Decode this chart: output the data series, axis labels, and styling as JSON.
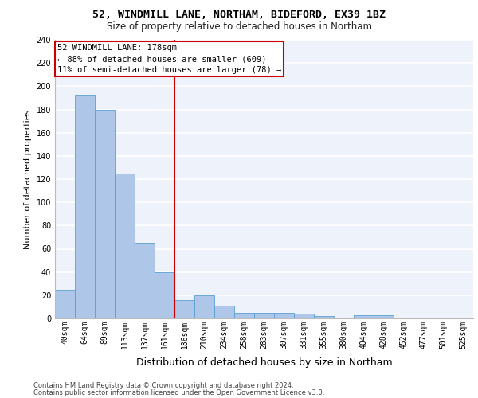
{
  "title1": "52, WINDMILL LANE, NORTHAM, BIDEFORD, EX39 1BZ",
  "title2": "Size of property relative to detached houses in Northam",
  "xlabel": "Distribution of detached houses by size in Northam",
  "ylabel": "Number of detached properties",
  "bar_color": "#aec6e8",
  "bar_edge_color": "#5a9fd4",
  "bin_labels": [
    "40sqm",
    "64sqm",
    "89sqm",
    "113sqm",
    "137sqm",
    "161sqm",
    "186sqm",
    "210sqm",
    "234sqm",
    "258sqm",
    "283sqm",
    "307sqm",
    "331sqm",
    "355sqm",
    "380sqm",
    "404sqm",
    "428sqm",
    "452sqm",
    "477sqm",
    "501sqm",
    "525sqm"
  ],
  "bar_values": [
    25,
    193,
    180,
    125,
    65,
    40,
    16,
    20,
    11,
    5,
    5,
    5,
    4,
    2,
    0,
    3,
    3,
    0,
    0,
    0,
    0
  ],
  "property_line_x": 5.5,
  "annotation_text1": "52 WINDMILL LANE: 178sqm",
  "annotation_text2": "← 88% of detached houses are smaller (609)",
  "annotation_text3": "11% of semi-detached houses are larger (78) →",
  "annotation_box_color": "#ffffff",
  "annotation_box_edge": "#cc0000",
  "vline_color": "#cc0000",
  "ylim": [
    0,
    240
  ],
  "yticks": [
    0,
    20,
    40,
    60,
    80,
    100,
    120,
    140,
    160,
    180,
    200,
    220,
    240
  ],
  "footer1": "Contains HM Land Registry data © Crown copyright and database right 2024.",
  "footer2": "Contains public sector information licensed under the Open Government Licence v3.0.",
  "background_color": "#eef2fb",
  "grid_color": "#ffffff",
  "title1_fontsize": 9.5,
  "title2_fontsize": 8.5,
  "axis_label_fontsize": 8,
  "tick_fontsize": 7,
  "annotation_fontsize": 7.5,
  "footer_fontsize": 6
}
